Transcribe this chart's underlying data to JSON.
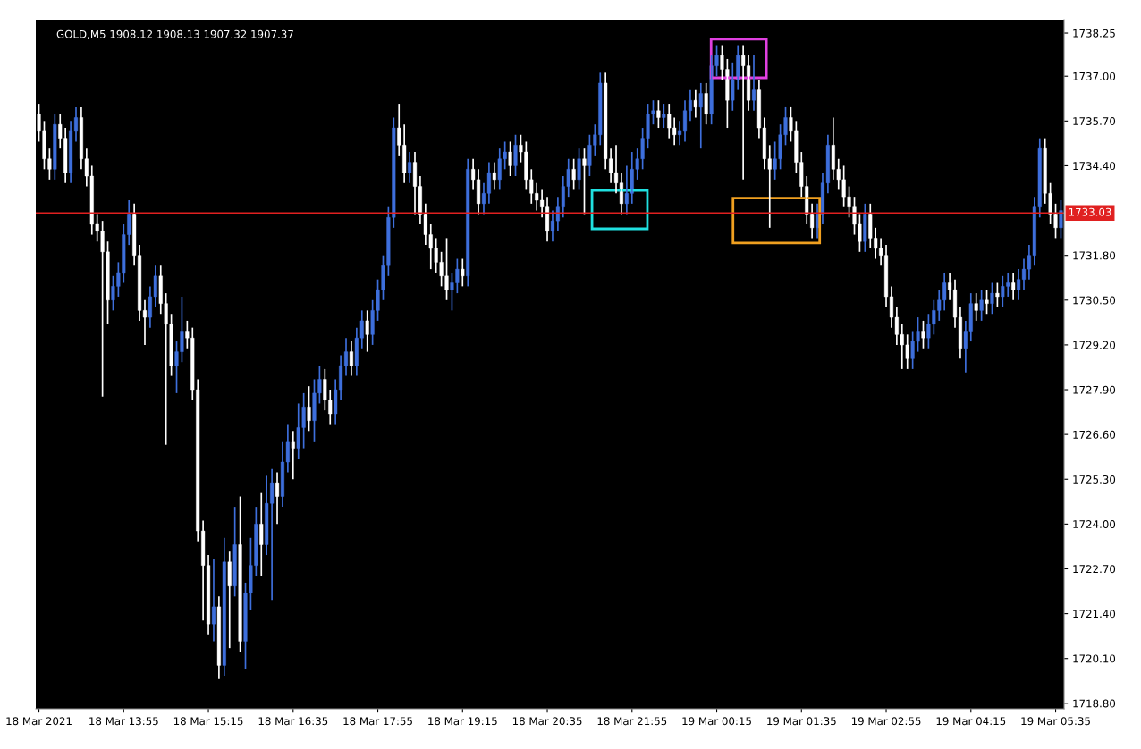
{
  "chart_data": {
    "type": "candlestick",
    "title": "GOLD,M5 1908.12 1908.13 1907.32 1907.37",
    "categories": [
      "18 Mar 2021",
      null,
      null,
      null,
      null,
      null,
      null,
      null,
      null,
      null,
      null,
      null,
      null,
      null,
      null,
      null,
      "18 Mar 13:55",
      null,
      null,
      null,
      null,
      null,
      null,
      null,
      null,
      null,
      null,
      null,
      null,
      null,
      null,
      null,
      "18 Mar 15:15",
      null,
      null,
      null,
      null,
      null,
      null,
      null,
      null,
      null,
      null,
      null,
      null,
      null,
      null,
      null,
      "18 Mar 16:35",
      null,
      null,
      null,
      null,
      null,
      null,
      null,
      null,
      null,
      null,
      null,
      null,
      null,
      null,
      null,
      "18 Mar 17:55",
      null,
      null,
      null,
      null,
      null,
      null,
      null,
      null,
      null,
      null,
      null,
      null,
      null,
      null,
      null,
      "18 Mar 19:15",
      null,
      null,
      null,
      null,
      null,
      null,
      null,
      null,
      null,
      null,
      null,
      null,
      null,
      null,
      null,
      "18 Mar 20:35",
      null,
      null,
      null,
      null,
      null,
      null,
      null,
      null,
      null,
      null,
      null,
      null,
      null,
      null,
      null,
      "18 Mar 21:55",
      null,
      null,
      null,
      null,
      null,
      null,
      null,
      null,
      null,
      null,
      null,
      null,
      null,
      null,
      null,
      "19 Mar 00:15",
      null,
      null,
      null,
      null,
      null,
      null,
      null,
      null,
      null,
      null,
      null,
      null,
      null,
      null,
      null,
      "19 Mar 01:35",
      null,
      null,
      null,
      null,
      null,
      null,
      null,
      null,
      null,
      null,
      null,
      null,
      null,
      null,
      null,
      "19 Mar 02:55",
      null,
      null,
      null,
      null,
      null,
      null,
      null,
      null,
      null,
      null,
      null,
      null,
      null,
      null,
      null,
      "19 Mar 04:15",
      null,
      null,
      null,
      null,
      null,
      null,
      null,
      null,
      null,
      null,
      null,
      null,
      null,
      null,
      null,
      "19 Mar 05:35",
      null
    ],
    "ohlc": [
      [
        1735.9,
        1736.2,
        1735.1,
        1735.4
      ],
      [
        1735.4,
        1735.7,
        1734.3,
        1734.6
      ],
      [
        1734.6,
        1734.9,
        1734.0,
        1734.3
      ],
      [
        1734.3,
        1735.9,
        1734.0,
        1735.6
      ],
      [
        1735.6,
        1735.9,
        1734.9,
        1735.2
      ],
      [
        1735.2,
        1735.5,
        1733.9,
        1734.2
      ],
      [
        1734.2,
        1735.7,
        1733.9,
        1735.4
      ],
      [
        1735.4,
        1736.1,
        1735.1,
        1735.8
      ],
      [
        1735.8,
        1736.1,
        1734.3,
        1734.6
      ],
      [
        1734.6,
        1734.9,
        1733.8,
        1734.1
      ],
      [
        1734.1,
        1734.4,
        1732.4,
        1732.7
      ],
      [
        1732.7,
        1733.0,
        1732.2,
        1732.5
      ],
      [
        1732.5,
        1732.8,
        1727.7,
        1731.9
      ],
      [
        1731.9,
        1732.2,
        1729.8,
        1730.5
      ],
      [
        1730.5,
        1731.2,
        1730.2,
        1730.9
      ],
      [
        1730.9,
        1731.6,
        1730.6,
        1731.3
      ],
      [
        1731.3,
        1732.7,
        1731.0,
        1732.4
      ],
      [
        1732.4,
        1733.4,
        1732.1,
        1733.0
      ],
      [
        1733.0,
        1733.3,
        1731.5,
        1731.8
      ],
      [
        1731.8,
        1732.1,
        1729.9,
        1730.2
      ],
      [
        1730.2,
        1730.5,
        1729.2,
        1730.0
      ],
      [
        1730.0,
        1730.9,
        1729.7,
        1730.6
      ],
      [
        1730.6,
        1731.5,
        1730.3,
        1731.2
      ],
      [
        1731.2,
        1731.5,
        1730.1,
        1730.4
      ],
      [
        1730.4,
        1730.7,
        1726.3,
        1729.8
      ],
      [
        1729.8,
        1730.1,
        1728.3,
        1728.6
      ],
      [
        1728.6,
        1729.3,
        1727.8,
        1729.0
      ],
      [
        1729.0,
        1730.6,
        1728.7,
        1729.6
      ],
      [
        1729.6,
        1729.9,
        1729.1,
        1729.4
      ],
      [
        1729.4,
        1729.7,
        1727.6,
        1727.9
      ],
      [
        1727.9,
        1728.2,
        1723.5,
        1723.8
      ],
      [
        1723.8,
        1724.1,
        1721.2,
        1722.8
      ],
      [
        1722.8,
        1723.1,
        1720.8,
        1721.1
      ],
      [
        1721.1,
        1723.0,
        1720.6,
        1721.6
      ],
      [
        1721.6,
        1721.9,
        1719.5,
        1719.9
      ],
      [
        1719.9,
        1723.6,
        1719.6,
        1722.9
      ],
      [
        1722.9,
        1723.2,
        1720.4,
        1722.2
      ],
      [
        1722.2,
        1724.5,
        1721.9,
        1723.4
      ],
      [
        1723.4,
        1724.8,
        1720.3,
        1720.6
      ],
      [
        1720.6,
        1722.3,
        1719.8,
        1722.0
      ],
      [
        1722.0,
        1723.6,
        1721.5,
        1722.8
      ],
      [
        1722.8,
        1724.5,
        1722.5,
        1724.0
      ],
      [
        1724.0,
        1724.9,
        1722.5,
        1723.4
      ],
      [
        1723.4,
        1725.4,
        1723.1,
        1724.6
      ],
      [
        1724.6,
        1725.6,
        1721.8,
        1725.2
      ],
      [
        1725.2,
        1725.5,
        1724.0,
        1724.8
      ],
      [
        1724.8,
        1726.4,
        1724.5,
        1725.8
      ],
      [
        1725.8,
        1726.9,
        1725.5,
        1726.4
      ],
      [
        1726.4,
        1726.7,
        1725.3,
        1726.2
      ],
      [
        1726.2,
        1727.5,
        1725.9,
        1726.8
      ],
      [
        1726.8,
        1727.8,
        1726.2,
        1727.4
      ],
      [
        1727.4,
        1728.0,
        1726.7,
        1727.0
      ],
      [
        1727.0,
        1728.2,
        1726.4,
        1727.8
      ],
      [
        1727.8,
        1728.6,
        1727.5,
        1728.2
      ],
      [
        1728.2,
        1728.5,
        1727.3,
        1727.6
      ],
      [
        1727.6,
        1727.9,
        1726.9,
        1727.2
      ],
      [
        1727.2,
        1728.2,
        1726.9,
        1727.9
      ],
      [
        1727.9,
        1728.9,
        1727.6,
        1728.6
      ],
      [
        1728.6,
        1729.4,
        1728.3,
        1729.0
      ],
      [
        1729.0,
        1729.3,
        1728.3,
        1728.6
      ],
      [
        1728.6,
        1729.7,
        1728.3,
        1729.4
      ],
      [
        1729.4,
        1730.2,
        1729.1,
        1729.9
      ],
      [
        1729.9,
        1730.2,
        1729.0,
        1729.5
      ],
      [
        1729.5,
        1730.5,
        1729.2,
        1730.2
      ],
      [
        1730.2,
        1731.1,
        1729.9,
        1730.8
      ],
      [
        1730.8,
        1731.8,
        1730.5,
        1731.5
      ],
      [
        1731.5,
        1733.2,
        1731.2,
        1732.9
      ],
      [
        1732.9,
        1735.8,
        1732.6,
        1735.5
      ],
      [
        1735.5,
        1736.2,
        1734.7,
        1735.0
      ],
      [
        1735.0,
        1735.6,
        1733.9,
        1734.2
      ],
      [
        1734.2,
        1734.8,
        1733.9,
        1734.5
      ],
      [
        1734.5,
        1734.8,
        1733.0,
        1733.8
      ],
      [
        1733.8,
        1734.1,
        1732.7,
        1733.0
      ],
      [
        1733.0,
        1733.3,
        1732.1,
        1732.4
      ],
      [
        1732.4,
        1732.7,
        1731.4,
        1732.0
      ],
      [
        1732.0,
        1732.3,
        1731.3,
        1731.6
      ],
      [
        1731.6,
        1731.9,
        1730.9,
        1731.2
      ],
      [
        1731.2,
        1732.3,
        1730.5,
        1730.8
      ],
      [
        1730.8,
        1731.3,
        1730.2,
        1731.0
      ],
      [
        1731.0,
        1731.7,
        1730.7,
        1731.4
      ],
      [
        1731.4,
        1731.7,
        1730.9,
        1731.2
      ],
      [
        1731.2,
        1734.6,
        1730.9,
        1734.3
      ],
      [
        1734.3,
        1734.6,
        1733.7,
        1734.0
      ],
      [
        1734.0,
        1734.3,
        1733.0,
        1733.3
      ],
      [
        1733.3,
        1733.9,
        1733.0,
        1733.6
      ],
      [
        1733.6,
        1734.5,
        1733.3,
        1734.2
      ],
      [
        1734.2,
        1734.5,
        1733.7,
        1734.0
      ],
      [
        1734.0,
        1734.9,
        1733.7,
        1734.6
      ],
      [
        1734.6,
        1735.1,
        1734.3,
        1734.8
      ],
      [
        1734.8,
        1735.1,
        1734.1,
        1734.4
      ],
      [
        1734.4,
        1735.3,
        1734.1,
        1735.0
      ],
      [
        1735.0,
        1735.3,
        1734.5,
        1734.8
      ],
      [
        1734.8,
        1735.1,
        1733.7,
        1734.0
      ],
      [
        1734.0,
        1734.3,
        1733.3,
        1733.6
      ],
      [
        1733.6,
        1733.9,
        1733.1,
        1733.4
      ],
      [
        1733.4,
        1733.7,
        1732.9,
        1733.2
      ],
      [
        1733.2,
        1733.5,
        1732.2,
        1732.5
      ],
      [
        1732.5,
        1733.1,
        1732.2,
        1732.8
      ],
      [
        1732.8,
        1733.5,
        1732.5,
        1733.2
      ],
      [
        1733.2,
        1734.1,
        1732.9,
        1733.8
      ],
      [
        1733.8,
        1734.6,
        1733.5,
        1734.3
      ],
      [
        1734.3,
        1734.6,
        1733.7,
        1734.0
      ],
      [
        1734.0,
        1734.9,
        1733.7,
        1734.6
      ],
      [
        1734.6,
        1734.9,
        1733.0,
        1734.4
      ],
      [
        1734.4,
        1735.3,
        1734.1,
        1735.0
      ],
      [
        1735.0,
        1735.6,
        1734.7,
        1735.3
      ],
      [
        1735.3,
        1737.1,
        1735.0,
        1736.8
      ],
      [
        1736.8,
        1737.1,
        1734.3,
        1734.6
      ],
      [
        1734.6,
        1734.9,
        1733.9,
        1734.2
      ],
      [
        1734.2,
        1735.0,
        1733.6,
        1733.9
      ],
      [
        1733.9,
        1734.2,
        1733.0,
        1733.3
      ],
      [
        1733.3,
        1734.4,
        1733.0,
        1733.6
      ],
      [
        1733.6,
        1734.8,
        1733.3,
        1734.3
      ],
      [
        1734.3,
        1734.9,
        1734.0,
        1734.6
      ],
      [
        1734.6,
        1735.5,
        1734.3,
        1735.2
      ],
      [
        1735.2,
        1736.2,
        1734.9,
        1735.9
      ],
      [
        1735.9,
        1736.3,
        1735.6,
        1736.0
      ],
      [
        1736.0,
        1736.3,
        1735.5,
        1735.8
      ],
      [
        1735.8,
        1736.2,
        1735.5,
        1735.9
      ],
      [
        1735.9,
        1736.2,
        1735.2,
        1735.5
      ],
      [
        1735.5,
        1735.8,
        1735.0,
        1735.3
      ],
      [
        1735.3,
        1735.7,
        1735.0,
        1735.4
      ],
      [
        1735.4,
        1736.3,
        1735.1,
        1736.0
      ],
      [
        1736.0,
        1736.6,
        1735.7,
        1736.3
      ],
      [
        1736.3,
        1736.6,
        1735.8,
        1736.1
      ],
      [
        1736.1,
        1736.8,
        1734.9,
        1736.5
      ],
      [
        1736.5,
        1736.8,
        1735.6,
        1735.9
      ],
      [
        1735.9,
        1737.6,
        1735.6,
        1737.3
      ],
      [
        1737.3,
        1737.9,
        1737.0,
        1737.6
      ],
      [
        1737.6,
        1737.9,
        1736.9,
        1737.2
      ],
      [
        1737.2,
        1737.5,
        1735.5,
        1736.3
      ],
      [
        1736.3,
        1737.4,
        1736.0,
        1736.9
      ],
      [
        1736.9,
        1737.9,
        1736.6,
        1737.6
      ],
      [
        1737.6,
        1737.9,
        1734.0,
        1737.3
      ],
      [
        1737.3,
        1737.6,
        1736.0,
        1736.3
      ],
      [
        1736.3,
        1737.6,
        1736.0,
        1736.6
      ],
      [
        1736.6,
        1736.9,
        1735.2,
        1735.5
      ],
      [
        1735.5,
        1735.8,
        1734.3,
        1734.6
      ],
      [
        1734.6,
        1735.0,
        1732.6,
        1734.3
      ],
      [
        1734.3,
        1735.1,
        1734.0,
        1734.6
      ],
      [
        1734.6,
        1735.6,
        1734.3,
        1735.3
      ],
      [
        1735.3,
        1736.1,
        1735.0,
        1735.8
      ],
      [
        1735.8,
        1736.1,
        1735.1,
        1735.4
      ],
      [
        1735.4,
        1735.7,
        1734.2,
        1734.5
      ],
      [
        1734.5,
        1734.8,
        1733.5,
        1733.8
      ],
      [
        1733.8,
        1734.1,
        1732.7,
        1733.0
      ],
      [
        1733.0,
        1733.3,
        1732.3,
        1732.6
      ],
      [
        1732.6,
        1733.3,
        1732.3,
        1733.0
      ],
      [
        1733.0,
        1734.2,
        1732.7,
        1733.9
      ],
      [
        1733.9,
        1735.3,
        1733.6,
        1735.0
      ],
      [
        1735.0,
        1735.8,
        1734.0,
        1734.3
      ],
      [
        1734.3,
        1734.6,
        1733.7,
        1734.0
      ],
      [
        1734.0,
        1734.4,
        1733.2,
        1733.5
      ],
      [
        1733.5,
        1733.8,
        1732.9,
        1733.2
      ],
      [
        1733.2,
        1733.5,
        1732.4,
        1732.7
      ],
      [
        1732.7,
        1733.0,
        1731.9,
        1732.2
      ],
      [
        1732.2,
        1733.3,
        1731.9,
        1733.0
      ],
      [
        1733.0,
        1733.3,
        1732.0,
        1732.3
      ],
      [
        1732.3,
        1732.6,
        1731.7,
        1732.0
      ],
      [
        1732.0,
        1732.3,
        1731.5,
        1731.8
      ],
      [
        1731.8,
        1732.1,
        1730.3,
        1730.6
      ],
      [
        1730.6,
        1730.9,
        1729.7,
        1730.0
      ],
      [
        1730.0,
        1730.3,
        1729.2,
        1729.5
      ],
      [
        1729.5,
        1729.8,
        1728.5,
        1729.2
      ],
      [
        1729.2,
        1729.5,
        1728.5,
        1728.8
      ],
      [
        1728.8,
        1729.6,
        1728.5,
        1729.3
      ],
      [
        1729.3,
        1730.0,
        1729.0,
        1729.6
      ],
      [
        1729.6,
        1729.9,
        1729.1,
        1729.4
      ],
      [
        1729.4,
        1730.1,
        1729.1,
        1729.8
      ],
      [
        1729.8,
        1730.5,
        1729.5,
        1730.2
      ],
      [
        1730.2,
        1730.8,
        1729.9,
        1730.5
      ],
      [
        1730.5,
        1731.3,
        1730.2,
        1731.0
      ],
      [
        1731.0,
        1731.3,
        1730.5,
        1730.8
      ],
      [
        1730.8,
        1731.1,
        1729.7,
        1730.0
      ],
      [
        1730.0,
        1730.3,
        1728.8,
        1729.1
      ],
      [
        1729.1,
        1729.9,
        1728.4,
        1729.6
      ],
      [
        1729.6,
        1730.7,
        1729.3,
        1730.4
      ],
      [
        1730.4,
        1730.7,
        1729.9,
        1730.2
      ],
      [
        1730.2,
        1730.8,
        1729.9,
        1730.5
      ],
      [
        1730.5,
        1730.8,
        1730.1,
        1730.4
      ],
      [
        1730.4,
        1731.0,
        1730.1,
        1730.7
      ],
      [
        1730.7,
        1731.0,
        1730.3,
        1730.6
      ],
      [
        1730.6,
        1731.2,
        1730.3,
        1730.9
      ],
      [
        1730.9,
        1731.3,
        1730.6,
        1731.0
      ],
      [
        1731.0,
        1731.3,
        1730.5,
        1730.8
      ],
      [
        1730.8,
        1731.4,
        1730.5,
        1731.1
      ],
      [
        1731.1,
        1731.7,
        1730.8,
        1731.4
      ],
      [
        1731.4,
        1732.1,
        1731.1,
        1731.8
      ],
      [
        1731.8,
        1733.5,
        1731.5,
        1733.2
      ],
      [
        1733.2,
        1735.2,
        1732.9,
        1734.9
      ],
      [
        1734.9,
        1735.2,
        1733.3,
        1733.6
      ],
      [
        1733.6,
        1733.9,
        1732.7,
        1733.0
      ],
      [
        1733.0,
        1733.3,
        1732.3,
        1732.6
      ],
      [
        1732.6,
        1733.4,
        1732.3,
        1733.1
      ]
    ],
    "colors": [
      "#ffffff",
      "#ffffff",
      "#ffffff",
      "#3e6fdc",
      "#ffffff",
      "#ffffff",
      "#3e6fdc",
      "#3e6fdc",
      "#ffffff",
      "#ffffff",
      "#ffffff",
      "#ffffff",
      "#ffffff",
      "#ffffff",
      "#3e6fdc",
      "#3e6fdc",
      "#3e6fdc",
      "#3e6fdc",
      "#ffffff",
      "#ffffff",
      "#ffffff",
      "#3e6fdc",
      "#3e6fdc",
      "#ffffff",
      "#ffffff",
      "#ffffff",
      "#3e6fdc",
      "#3e6fdc",
      "#ffffff",
      "#ffffff",
      "#ffffff",
      "#ffffff",
      "#ffffff",
      "#3e6fdc",
      "#ffffff",
      "#3e6fdc",
      "#ffffff",
      "#3e6fdc",
      "#ffffff",
      "#3e6fdc",
      "#3e6fdc",
      "#3e6fdc",
      "#ffffff",
      "#3e6fdc",
      "#3e6fdc",
      "#ffffff",
      "#3e6fdc",
      "#3e6fdc",
      "#ffffff",
      "#3e6fdc",
      "#3e6fdc",
      "#ffffff",
      "#3e6fdc",
      "#3e6fdc",
      "#ffffff",
      "#ffffff",
      "#3e6fdc",
      "#3e6fdc",
      "#3e6fdc",
      "#ffffff",
      "#3e6fdc",
      "#3e6fdc",
      "#ffffff",
      "#3e6fdc",
      "#3e6fdc",
      "#3e6fdc",
      "#3e6fdc",
      "#3e6fdc",
      "#ffffff",
      "#ffffff",
      "#3e6fdc",
      "#ffffff",
      "#ffffff",
      "#ffffff",
      "#ffffff",
      "#ffffff",
      "#ffffff",
      "#ffffff",
      "#3e6fdc",
      "#3e6fdc",
      "#ffffff",
      "#3e6fdc",
      "#ffffff",
      "#ffffff",
      "#3e6fdc",
      "#3e6fdc",
      "#ffffff",
      "#3e6fdc",
      "#3e6fdc",
      "#ffffff",
      "#3e6fdc",
      "#ffffff",
      "#ffffff",
      "#ffffff",
      "#ffffff",
      "#ffffff",
      "#ffffff",
      "#3e6fdc",
      "#3e6fdc",
      "#3e6fdc",
      "#3e6fdc",
      "#ffffff",
      "#3e6fdc",
      "#ffffff",
      "#3e6fdc",
      "#3e6fdc",
      "#3e6fdc",
      "#ffffff",
      "#ffffff",
      "#ffffff",
      "#ffffff",
      "#3e6fdc",
      "#3e6fdc",
      "#3e6fdc",
      "#3e6fdc",
      "#3e6fdc",
      "#3e6fdc",
      "#ffffff",
      "#3e6fdc",
      "#ffffff",
      "#ffffff",
      "#3e6fdc",
      "#3e6fdc",
      "#3e6fdc",
      "#ffffff",
      "#3e6fdc",
      "#ffffff",
      "#3e6fdc",
      "#3e6fdc",
      "#ffffff",
      "#ffffff",
      "#3e6fdc",
      "#3e6fdc",
      "#ffffff",
      "#ffffff",
      "#3e6fdc",
      "#ffffff",
      "#ffffff",
      "#ffffff",
      "#3e6fdc",
      "#3e6fdc",
      "#3e6fdc",
      "#ffffff",
      "#ffffff",
      "#ffffff",
      "#ffffff",
      "#ffffff",
      "#3e6fdc",
      "#3e6fdc",
      "#3e6fdc",
      "#ffffff",
      "#ffffff",
      "#ffffff",
      "#ffffff",
      "#ffffff",
      "#ffffff",
      "#3e6fdc",
      "#ffffff",
      "#ffffff",
      "#ffffff",
      "#ffffff",
      "#ffffff",
      "#ffffff",
      "#ffffff",
      "#ffffff",
      "#3e6fdc",
      "#3e6fdc",
      "#ffffff",
      "#3e6fdc",
      "#3e6fdc",
      "#3e6fdc",
      "#3e6fdc",
      "#ffffff",
      "#ffffff",
      "#ffffff",
      "#3e6fdc",
      "#3e6fdc",
      "#ffffff",
      "#3e6fdc",
      "#ffffff",
      "#3e6fdc",
      "#ffffff",
      "#3e6fdc",
      "#3e6fdc",
      "#ffffff",
      "#3e6fdc",
      "#3e6fdc",
      "#3e6fdc",
      "#3e6fdc",
      "#3e6fdc",
      "#ffffff",
      "#ffffff",
      "#ffffff",
      "#3e6fdc"
    ],
    "ylim": [
      1718.64,
      1738.64
    ],
    "yticks": [
      {
        "value": 1718.8,
        "label": "1718.80"
      },
      {
        "value": 1720.1,
        "label": "1720.10"
      },
      {
        "value": 1721.4,
        "label": "1721.40"
      },
      {
        "value": 1722.7,
        "label": "1722.70"
      },
      {
        "value": 1724.0,
        "label": "1724.00"
      },
      {
        "value": 1725.3,
        "label": "1725.30"
      },
      {
        "value": 1726.6,
        "label": "1726.60"
      },
      {
        "value": 1727.9,
        "label": "1727.90"
      },
      {
        "value": 1729.2,
        "label": "1729.20"
      },
      {
        "value": 1730.5,
        "label": "1730.50"
      },
      {
        "value": 1731.8,
        "label": "1731.80"
      },
      {
        "value": 1734.4,
        "label": "1734.40"
      },
      {
        "value": 1735.7,
        "label": "1735.70"
      },
      {
        "value": 1737.0,
        "label": "1737.00"
      },
      {
        "value": 1738.25,
        "label": "1738.25"
      }
    ],
    "ref_lines": [
      {
        "axis": "y",
        "value": 1733.03,
        "label": "1733.03",
        "color": "#e02020"
      }
    ]
  }
}
